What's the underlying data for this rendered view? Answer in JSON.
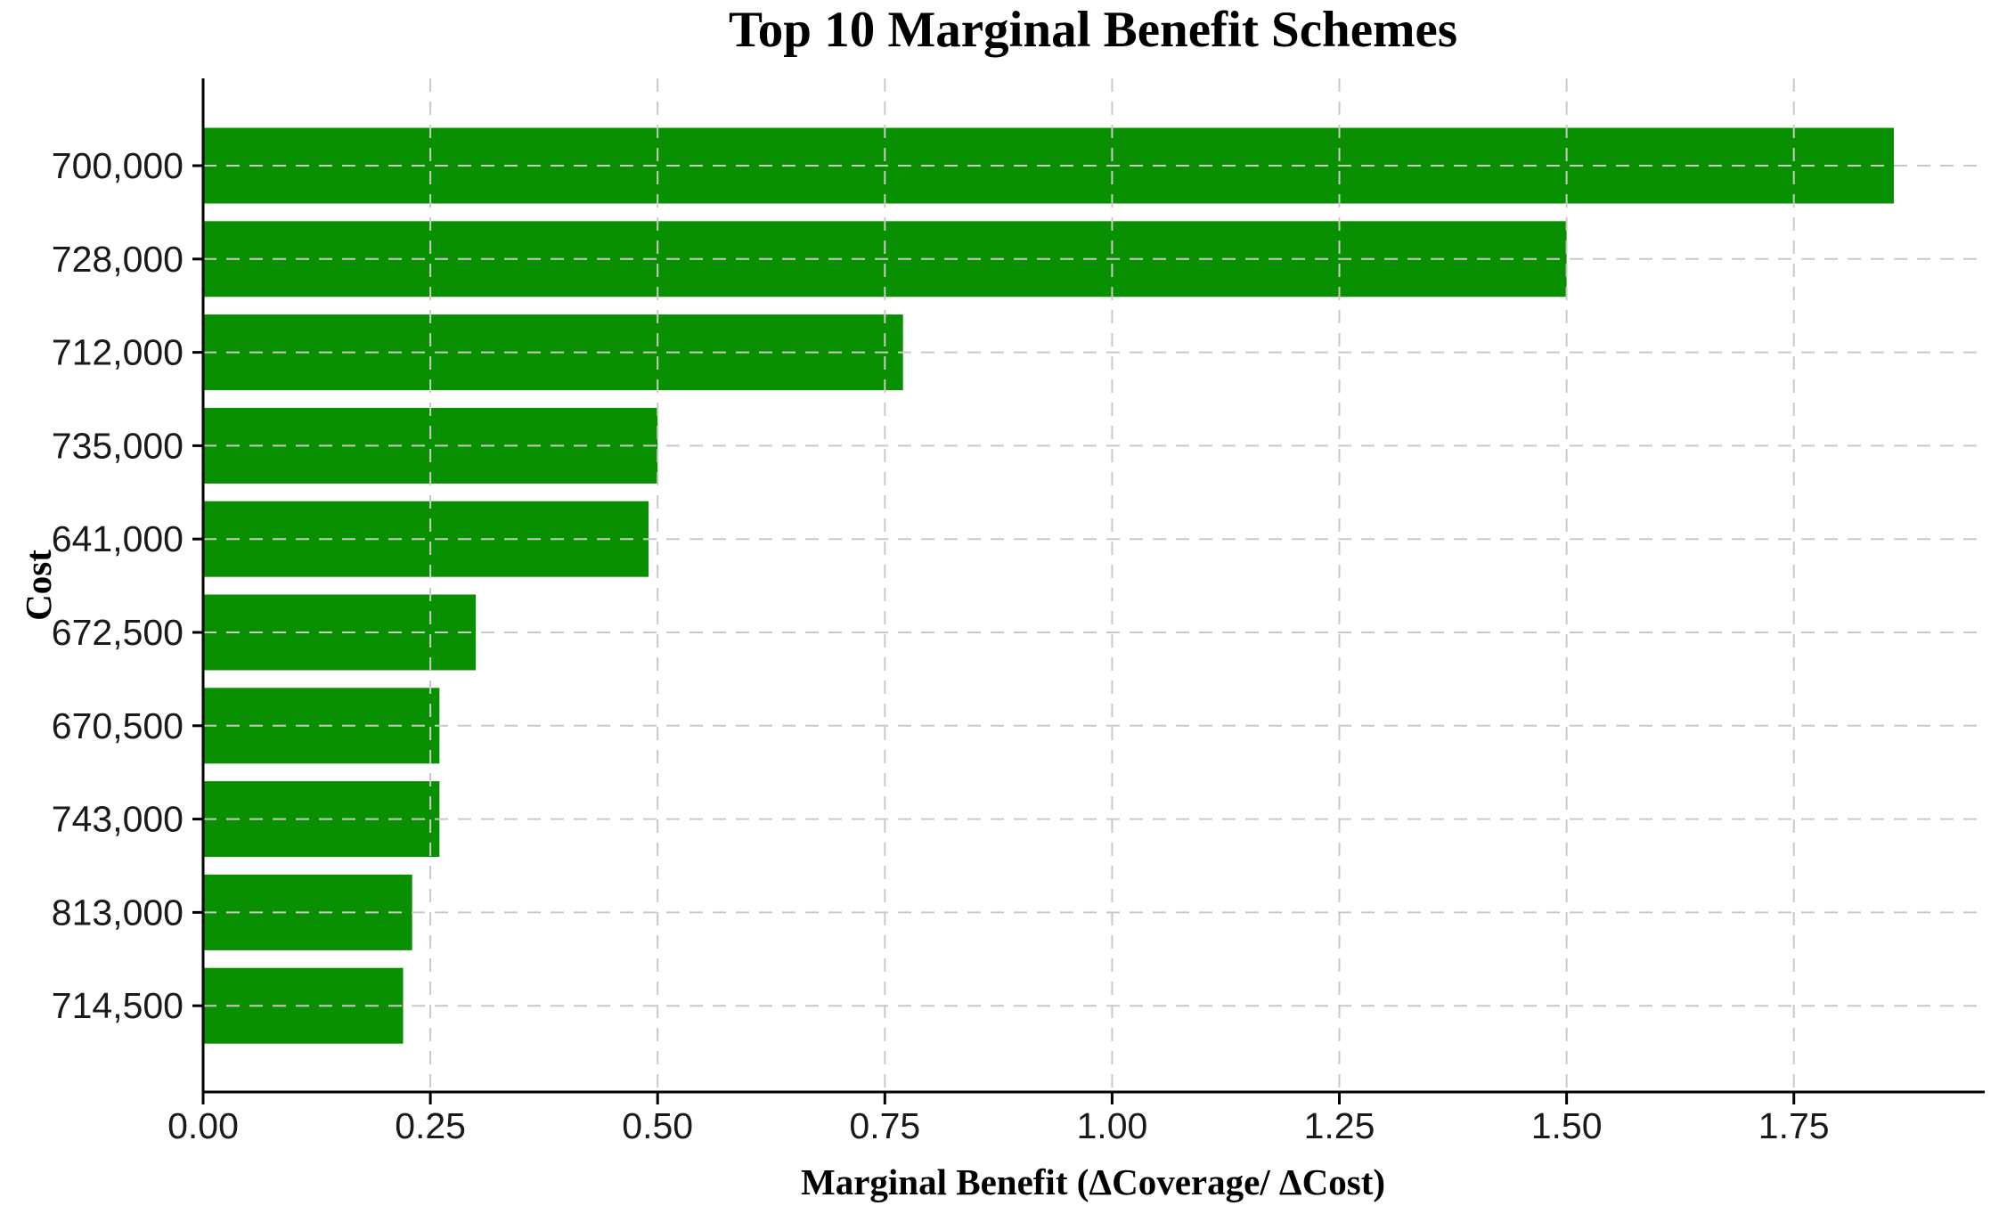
{
  "colors": {
    "bar": "#089000",
    "grid": "#c9c9c9",
    "axis": "#000000",
    "tick_text": "#1a1a1a"
  },
  "chart_data": {
    "type": "bar",
    "orientation": "horizontal",
    "title": "Top 10 Marginal Benefit Schemes",
    "xlabel": "Marginal Benefit (ΔCoverage/ ΔCost)",
    "ylabel": "Cost",
    "categories": [
      "700,000",
      "728,000",
      "712,000",
      "735,000",
      "641,000",
      "672,500",
      "670,500",
      "743,000",
      "813,000",
      "714,500"
    ],
    "values": [
      1.86,
      1.5,
      0.77,
      0.5,
      0.49,
      0.3,
      0.26,
      0.26,
      0.23,
      0.22
    ],
    "xlim": [
      0,
      1.96
    ],
    "xticks": [
      "0.00",
      "0.25",
      "0.50",
      "0.75",
      "1.00",
      "1.25",
      "1.50",
      "1.75"
    ],
    "xtick_values": [
      0,
      0.25,
      0.5,
      0.75,
      1.0,
      1.25,
      1.5,
      1.75
    ],
    "grid": "dashed",
    "legend": "none",
    "bar_color": "#089000"
  }
}
